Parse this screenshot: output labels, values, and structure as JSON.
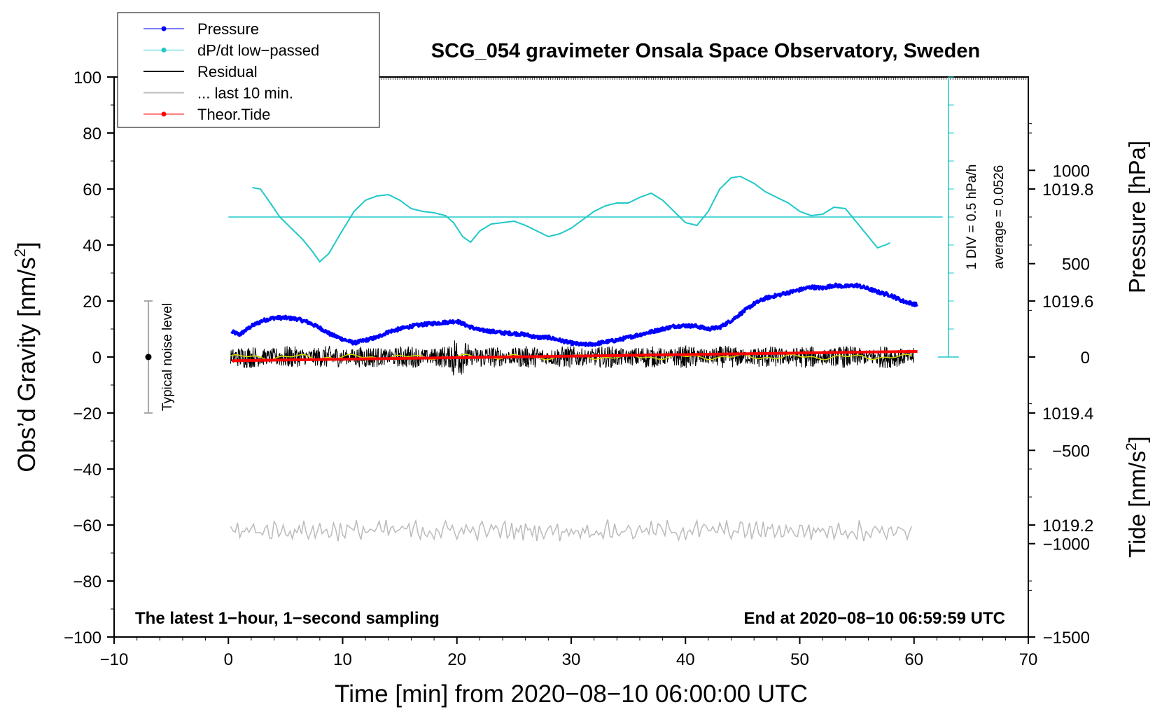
{
  "chart_data": {
    "type": "line",
    "title": "SCG_054 gravimeter Onsala Space Observatory, Sweden",
    "xlabel": "Time [min] from 2020−08−10 06:00:00 UTC",
    "ylabel_main": "Obs’d Gravity [nm/s",
    "ylabel_sup": "2",
    "ylabel_close": "]",
    "ylabel_pressure": "Pressure [hPa]",
    "ylabel_tide": "Tide [nm/s",
    "ylabel_tide_sup": "2",
    "ylabel_tide_close": "]",
    "xlim": [
      -10,
      70
    ],
    "ylim": [
      -100,
      100
    ],
    "pressure_ylim": [
      1019.0,
      1020.0
    ],
    "tide_ylim": [
      -1500,
      1500
    ],
    "x_ticks": [
      "−10",
      "0",
      "10",
      "20",
      "30",
      "40",
      "50",
      "60",
      "70"
    ],
    "y_ticks": [
      "100",
      "80",
      "60",
      "40",
      "20",
      "0",
      "−20",
      "−40",
      "−60",
      "−80",
      "−100"
    ],
    "pressure_ticks": [
      "1019.8",
      "1019.6",
      "1019.4",
      "1019.2"
    ],
    "tide_ticks": [
      "1000",
      "500",
      "0",
      "−500",
      "−1000",
      "−1500"
    ],
    "legend": [
      {
        "label": "Pressure",
        "color": "#0000ff",
        "marker": true
      },
      {
        "label": "dP/dt low−passed",
        "color": "#20c8c8",
        "marker": true
      },
      {
        "label": "Residual",
        "color": "#000000",
        "marker": false
      },
      {
        "label": "... last 10 min.",
        "color": "#bbbbbb",
        "marker": false
      },
      {
        "label": "Theor.Tide",
        "color": "#ff0000",
        "marker": true
      }
    ],
    "annotations": {
      "div": "1 DIV = 0.5 hPa/h",
      "average": "average = 0.0526",
      "noise": "Typical noise level",
      "bottom_left": "The latest 1−hour, 1−second sampling",
      "bottom_right": "End at 2020−08−10 06:59:59 UTC"
    },
    "noise_bar": {
      "x": -7,
      "y_low": -20,
      "y_high": 20
    },
    "series": [
      {
        "name": "Pressure",
        "axis": "pressure_hPa",
        "x": [
          0.3,
          1,
          2,
          3,
          4,
          5,
          6,
          7,
          8,
          9,
          10,
          11,
          12,
          13,
          14,
          15,
          16,
          17,
          18,
          19,
          20,
          21,
          22,
          23,
          24,
          25,
          26,
          27,
          28,
          29,
          30,
          31,
          32,
          33,
          34,
          35,
          36,
          37,
          38,
          39,
          40,
          41,
          42,
          43,
          44,
          45,
          46,
          47,
          48,
          49,
          50,
          51,
          52,
          53,
          54,
          55,
          56,
          57,
          58,
          59,
          60.3
        ],
        "values": [
          1019.545,
          1019.54,
          1019.555,
          1019.565,
          1019.57,
          1019.57,
          1019.568,
          1019.562,
          1019.552,
          1019.54,
          1019.532,
          1019.525,
          1019.53,
          1019.535,
          1019.545,
          1019.55,
          1019.555,
          1019.558,
          1019.56,
          1019.562,
          1019.564,
          1019.555,
          1019.548,
          1019.546,
          1019.543,
          1019.542,
          1019.54,
          1019.535,
          1019.535,
          1019.53,
          1019.525,
          1019.522,
          1019.523,
          1019.527,
          1019.53,
          1019.535,
          1019.54,
          1019.545,
          1019.55,
          1019.555,
          1019.556,
          1019.555,
          1019.55,
          1019.553,
          1019.565,
          1019.58,
          1019.595,
          1019.605,
          1019.61,
          1019.615,
          1019.62,
          1019.625,
          1019.623,
          1019.628,
          1019.626,
          1019.628,
          1019.622,
          1019.615,
          1019.61,
          1019.6,
          1019.593
        ]
      },
      {
        "name": "dP/dt low−passed",
        "axis": "gravity_nm_s2",
        "x": [
          2.1,
          2.8,
          3.5,
          4.5,
          5.5,
          6.5,
          7.3,
          8.0,
          8.8,
          9.8,
          11,
          12,
          13,
          14,
          15,
          16,
          17,
          18,
          19,
          19.7,
          20.5,
          21.2,
          22,
          23,
          24,
          25,
          26,
          27,
          28,
          29,
          30,
          31,
          32,
          33,
          34,
          35,
          36,
          37,
          38,
          39,
          40,
          41,
          42,
          43,
          44,
          44.8,
          46,
          47,
          48,
          49,
          50,
          51,
          52,
          53,
          54,
          55,
          56,
          56.8,
          57.5,
          58
        ],
        "values": [
          60.5,
          60,
          56,
          50,
          46,
          42,
          38,
          34,
          37,
          44,
          52,
          56,
          57.5,
          58,
          56,
          53,
          52,
          51.5,
          50.5,
          48,
          43,
          41,
          45,
          47.5,
          48,
          48.5,
          47,
          45,
          43,
          44,
          46,
          49,
          52,
          54,
          55,
          55,
          57,
          58.5,
          56,
          52,
          48,
          47,
          52,
          60,
          64,
          64.5,
          62,
          59,
          57,
          55,
          52,
          50.5,
          51,
          53.5,
          53,
          48,
          43,
          39,
          40,
          41
        ]
      },
      {
        "name": "Residual",
        "axis": "gravity_nm_s2",
        "x": [
          0.2,
          60
        ],
        "values": [
          0,
          0
        ],
        "amplitude": 2.5,
        "note": "high-frequency noise around 0 with yellow smoothed trace"
      },
      {
        "name": "... last 10 min.",
        "axis": "gravity_nm_s2",
        "x": [
          0.2,
          60
        ],
        "values": [
          -62,
          -62
        ],
        "amplitude": 2.5
      },
      {
        "name": "Theor.Tide",
        "axis": "tide_nm_s2",
        "x": [
          0.3,
          60.3
        ],
        "values": [
          -20,
          30
        ]
      }
    ],
    "pressure_reference_line": {
      "x_from": 0,
      "x_to": 62.5,
      "y": 50
    },
    "dpdt_scale_bar": {
      "x": 63,
      "y_from": 0,
      "y_to": 100
    }
  }
}
